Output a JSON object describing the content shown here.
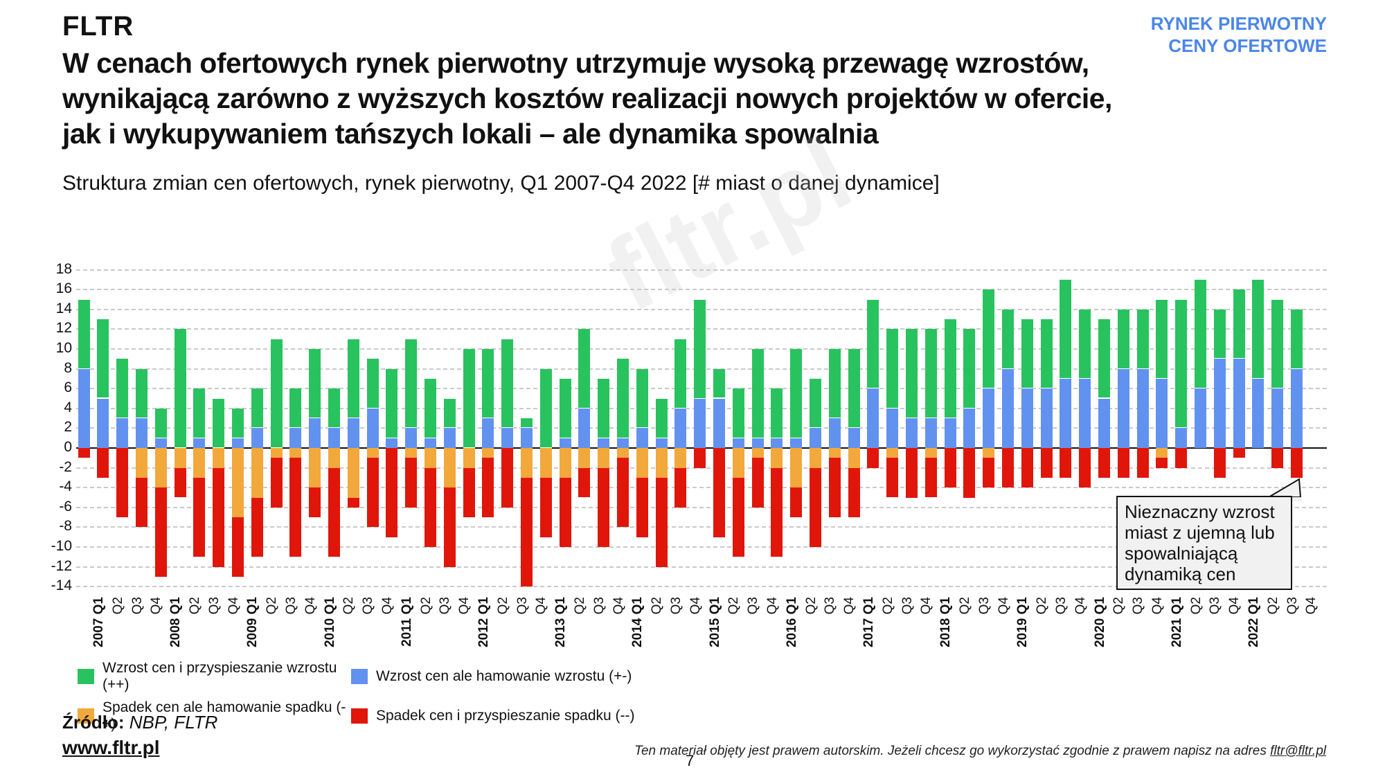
{
  "header": {
    "logo": "FLTR",
    "tag_line1": "RYNEK PIERWOTNY",
    "tag_line2": "CENY OFERTOWE"
  },
  "title": {
    "line1": "W cenach ofertowych rynek pierwotny utrzymuje wysoką przewagę wzrostów,",
    "line2": "wynikającą zarówno z wyższych kosztów realizacji nowych projektów w ofercie,",
    "line3": "jak i wykupywaniem tańszych lokali – ale dynamika spowalnia"
  },
  "subtitle": "Struktura zmian cen ofertowych, rynek pierwotny, Q1 2007-Q4 2022 [# miast o danej dynamice]",
  "watermark": "fltr.pl",
  "chart_data": {
    "type": "bar",
    "stacked": true,
    "grid": "dashed",
    "ylim": [
      -14,
      18
    ],
    "ytick_step": 2,
    "legend_position": "bottom-left",
    "categories": [
      "2007 Q1",
      "Q2",
      "Q3",
      "Q4",
      "2008 Q1",
      "Q2",
      "Q3",
      "Q4",
      "2009 Q1",
      "Q2",
      "Q3",
      "Q4",
      "2010 Q1",
      "Q2",
      "Q3",
      "Q4",
      "2011 Q1",
      "Q2",
      "Q3",
      "Q4",
      "2012 Q1",
      "Q2",
      "Q3",
      "Q4",
      "2013 Q1",
      "Q2",
      "Q3",
      "Q4",
      "2014 Q1",
      "Q2",
      "Q3",
      "Q4",
      "2015 Q1",
      "Q2",
      "Q3",
      "Q4",
      "2016 Q1",
      "Q2",
      "Q3",
      "Q4",
      "2017 Q1",
      "Q2",
      "Q3",
      "Q4",
      "2018 Q1",
      "Q2",
      "Q3",
      "Q4",
      "2019 Q1",
      "Q2",
      "Q3",
      "Q4",
      "2020 Q1",
      "Q2",
      "Q3",
      "Q4",
      "2021 Q1",
      "Q2",
      "Q3",
      "Q4",
      "2022 Q1",
      "Q2",
      "Q3",
      "Q4"
    ],
    "series": [
      {
        "name": "Wzrost cen i przyspieszanie wzrostu (++)",
        "color": "#28c35f",
        "stack_order": "positive-top",
        "values": [
          7,
          8,
          6,
          5,
          3,
          12,
          5,
          5,
          3,
          4,
          11,
          4,
          7,
          4,
          8,
          5,
          7,
          9,
          6,
          3,
          10,
          7,
          9,
          1,
          8,
          6,
          8,
          6,
          8,
          6,
          4,
          7,
          10,
          3,
          5,
          9,
          5,
          9,
          5,
          7,
          8,
          9,
          8,
          9,
          9,
          10,
          8,
          10,
          6,
          7,
          7,
          10,
          7,
          8,
          6,
          6,
          8,
          13,
          11,
          5,
          7,
          10,
          9,
          6
        ]
      },
      {
        "name": "Wzrost cen ale hamowanie wzrostu (+-)",
        "color": "#6292ef",
        "stack_order": "positive-base",
        "values": [
          8,
          5,
          3,
          3,
          1,
          0,
          1,
          0,
          1,
          2,
          0,
          2,
          3,
          2,
          3,
          4,
          1,
          2,
          1,
          2,
          0,
          3,
          2,
          2,
          0,
          1,
          4,
          1,
          1,
          2,
          1,
          4,
          5,
          5,
          1,
          1,
          1,
          1,
          2,
          3,
          2,
          6,
          4,
          3,
          3,
          3,
          4,
          6,
          8,
          6,
          6,
          7,
          7,
          5,
          8,
          8,
          7,
          2,
          6,
          9,
          9,
          7,
          6,
          8
        ]
      },
      {
        "name": "Spadek cen ale hamowanie spadku (-+)",
        "color": "#f2a83b",
        "stack_order": "negative-base",
        "values": [
          0,
          0,
          0,
          -3,
          -4,
          -2,
          -3,
          -2,
          -7,
          -5,
          -1,
          -1,
          -4,
          -2,
          -5,
          -1,
          0,
          -1,
          -2,
          -4,
          -2,
          -1,
          0,
          -3,
          -3,
          -3,
          -2,
          -2,
          -1,
          -3,
          -3,
          -2,
          0,
          0,
          -3,
          -1,
          -2,
          -4,
          -2,
          -1,
          -2,
          0,
          -1,
          0,
          -1,
          0,
          0,
          -1,
          0,
          0,
          0,
          0,
          0,
          0,
          0,
          0,
          -1,
          0,
          0,
          0,
          0,
          0,
          0,
          0
        ]
      },
      {
        "name": "Spadek cen i przyspieszanie spadku (--)",
        "color": "#e0160a",
        "stack_order": "negative-bottom",
        "values": [
          -1,
          -3,
          -7,
          -5,
          -9,
          -3,
          -8,
          -10,
          -6,
          -6,
          -5,
          -10,
          -3,
          -9,
          -1,
          -7,
          -9,
          -5,
          -8,
          -8,
          -5,
          -6,
          -6,
          -11,
          -6,
          -7,
          -3,
          -8,
          -7,
          -6,
          -9,
          -4,
          -2,
          -9,
          -8,
          -5,
          -9,
          -3,
          -8,
          -6,
          -5,
          -2,
          -4,
          -5,
          -4,
          -4,
          -5,
          -3,
          -4,
          -4,
          -3,
          -3,
          -4,
          -3,
          -3,
          -3,
          -1,
          -2,
          0,
          -3,
          -1,
          0,
          -2,
          -3
        ]
      }
    ]
  },
  "callout": {
    "text": "Nieznaczny wzrost miast z ujemną lub spowalniającą dynamiką cen"
  },
  "footer": {
    "source_label": "Źródło:",
    "source_value": " NBP, FLTR",
    "website": "www.fltr.pl",
    "page_number": "7",
    "disclaimer_text": "Ten materiał objęty jest prawem autorskim. Jeżeli chcesz go wykorzystać zgodnie z prawem napisz na adres ",
    "disclaimer_email": "fltr@fltr.pl"
  }
}
